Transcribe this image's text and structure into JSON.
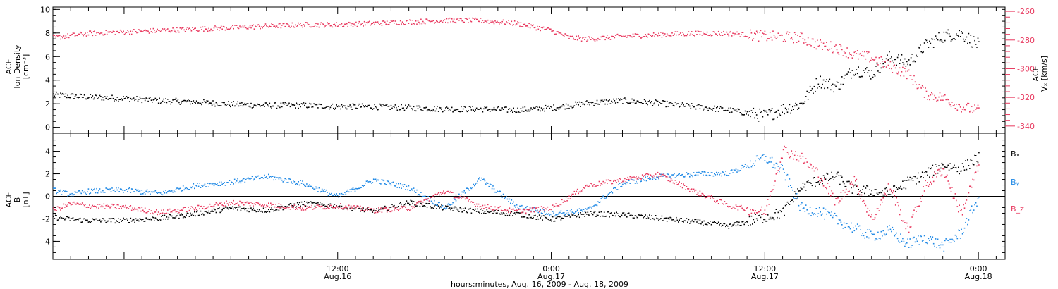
{
  "chart_data": [
    {
      "type": "scatter",
      "panel": "top",
      "ylabel": "ACE Ion Density [cm⁻³]",
      "ylabel_lines": [
        "ACE",
        "Ion Density",
        "[cm⁻³]"
      ],
      "ylim": [
        -0.5,
        10.2
      ],
      "yticks": [
        0,
        2,
        4,
        6,
        8,
        10
      ],
      "y2label": "ACE Vₓ [km/s]",
      "y2label_lines": [
        "ACE",
        "Vₓ [km/s]"
      ],
      "y2lim": [
        -345,
        -257
      ],
      "y2ticks": [
        -260,
        -280,
        -300,
        -320,
        -340
      ],
      "series": [
        {
          "color": "#000000",
          "axis": "left",
          "x": [
            -4,
            -2,
            0,
            2,
            4,
            6,
            8,
            10,
            12,
            14,
            16,
            18,
            20,
            22,
            24,
            26,
            28,
            30,
            32,
            34,
            36,
            37,
            38,
            39,
            40,
            41,
            42,
            43,
            44,
            45,
            46,
            47,
            48
          ],
          "y": [
            2.8,
            2.6,
            2.5,
            2.3,
            2.2,
            2.0,
            1.9,
            1.9,
            1.8,
            1.8,
            1.7,
            1.6,
            1.6,
            1.5,
            1.7,
            2.1,
            2.3,
            2.1,
            1.8,
            1.5,
            1.0,
            1.6,
            2.0,
            4.0,
            3.5,
            5.0,
            4.6,
            6.0,
            5.5,
            7.0,
            7.8,
            8.0,
            7.0
          ]
        },
        {
          "color": "#e8385e",
          "axis": "right",
          "x": [
            -4,
            -2,
            0,
            2,
            4,
            6,
            8,
            10,
            12,
            14,
            16,
            18,
            20,
            22,
            24,
            25,
            26,
            28,
            30,
            32,
            34,
            36,
            38,
            39,
            40,
            41,
            42,
            43,
            44,
            45,
            46,
            47,
            48
          ],
          "y": [
            -278,
            -275,
            -274,
            -273,
            -272,
            -271,
            -270,
            -269,
            -269,
            -268,
            -267,
            -266,
            -266,
            -268,
            -273,
            -278,
            -279,
            -277,
            -276,
            -275,
            -275,
            -277,
            -278,
            -283,
            -285,
            -290,
            -292,
            -298,
            -303,
            -317,
            -320,
            -326,
            -329
          ]
        }
      ]
    },
    {
      "type": "scatter",
      "panel": "bottom",
      "ylabel": "ACE B [nT]",
      "ylabel_lines": [
        "ACE",
        "B",
        "[nT]"
      ],
      "ylim": [
        -5.6,
        5.6
      ],
      "yticks": [
        -4,
        -2,
        0,
        2,
        4
      ],
      "zero_line": true,
      "legend": [
        "Bₓ",
        "Bᵧ",
        "B_z"
      ],
      "legend_placement": "right",
      "series": [
        {
          "name": "Bₓ",
          "color": "#000000",
          "x": [
            -4,
            -3,
            -2,
            0,
            2,
            4,
            6,
            8,
            10,
            12,
            14,
            16,
            18,
            20,
            22,
            24,
            26,
            28,
            30,
            32,
            34,
            36,
            37,
            38,
            39,
            40,
            41,
            42,
            43,
            44,
            45,
            46,
            47,
            48
          ],
          "y": [
            -1.8,
            -2.0,
            -2.1,
            -2.1,
            -1.9,
            -1.5,
            -1.0,
            -1.2,
            -0.6,
            -0.8,
            -1.3,
            -0.5,
            -1.0,
            -1.3,
            -1.5,
            -2.0,
            -1.5,
            -1.6,
            -1.9,
            -2.2,
            -2.6,
            -1.8,
            -1.4,
            0.8,
            1.5,
            1.8,
            0.6,
            0.5,
            0.3,
            1.3,
            2.0,
            2.8,
            2.5,
            3.5
          ]
        },
        {
          "name": "Bᵧ",
          "color": "#1e88e5",
          "x": [
            -4,
            -3,
            -2,
            0,
            2,
            4,
            6,
            8,
            10,
            12,
            14,
            16,
            18,
            20,
            22,
            24,
            26,
            28,
            30,
            32,
            34,
            36,
            37,
            38,
            39,
            40,
            41,
            42,
            43,
            44,
            45,
            46,
            47,
            48
          ],
          "y": [
            0.6,
            0.2,
            0.5,
            0.6,
            0.3,
            1.0,
            1.3,
            1.8,
            1.2,
            0.0,
            1.5,
            0.8,
            -1.0,
            1.6,
            -0.8,
            -1.5,
            -1.2,
            1.2,
            1.8,
            2.0,
            2.1,
            3.5,
            2.3,
            -1.0,
            -1.3,
            -2.0,
            -2.8,
            -3.5,
            -3.0,
            -4.2,
            -3.6,
            -4.4,
            -3.2,
            0.0
          ]
        },
        {
          "name": "B_z",
          "color": "#e8385e",
          "x": [
            -4,
            -3,
            -2,
            0,
            2,
            4,
            6,
            8,
            10,
            12,
            14,
            16,
            18,
            20,
            22,
            24,
            26,
            28,
            30,
            32,
            34,
            36,
            37,
            38,
            39,
            40,
            41,
            42,
            43,
            44,
            45,
            46,
            47,
            48
          ],
          "y": [
            -1.2,
            -0.6,
            -0.8,
            -0.9,
            -1.4,
            -1.0,
            -0.5,
            -0.7,
            -1.0,
            -0.8,
            -1.2,
            -1.0,
            0.5,
            -0.8,
            -1.3,
            -1.0,
            1.0,
            1.5,
            2.0,
            0.5,
            -0.8,
            -1.4,
            4.2,
            3.5,
            2.0,
            -0.5,
            1.5,
            -2.0,
            1.0,
            -3.0,
            1.0,
            2.5,
            -1.5,
            2.8
          ]
        }
      ]
    }
  ],
  "x_axis": {
    "xlim": [
      -4,
      49.5
    ],
    "ticks": [
      {
        "value": 12,
        "time": "12:00",
        "date": "Aug.16"
      },
      {
        "value": 24,
        "time": "0:00",
        "date": "Aug.17"
      },
      {
        "value": 36,
        "time": "12:00",
        "date": "Aug.17"
      },
      {
        "value": 48,
        "time": "0:00",
        "date": "Aug.18"
      }
    ],
    "xlabel": "hours:minutes, Aug. 16, 2009 - Aug. 18, 2009"
  }
}
